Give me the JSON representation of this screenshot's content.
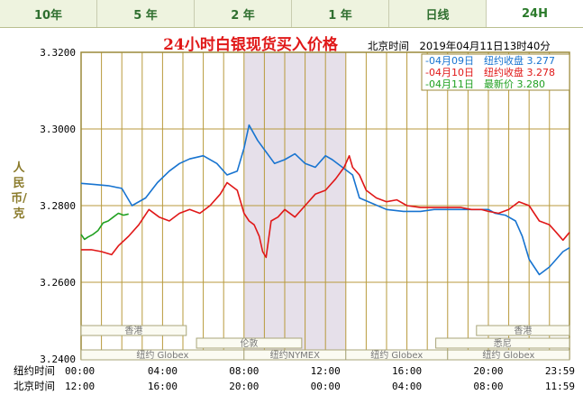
{
  "tabs": [
    {
      "label": "10年",
      "active": false
    },
    {
      "label": "5 年",
      "active": false
    },
    {
      "label": "2 年",
      "active": false
    },
    {
      "label": "1 年",
      "active": false
    },
    {
      "label": "日线",
      "active": false
    },
    {
      "label": "24H",
      "active": true
    }
  ],
  "colors": {
    "grid": "#b89a3c",
    "panel_border": "#9c8a3a",
    "session_band": "#e6e0ea",
    "series1": "#1874d0",
    "series2": "#e01818",
    "series3": "#20a020",
    "title": "#e01818"
  },
  "chart_data": {
    "type": "line",
    "title": "24小时白银现货买入价格",
    "time_label": "北京时间　2019年04月11日13时40分",
    "ylabel": "人民币/克",
    "ylim": [
      3.24,
      3.32
    ],
    "ytick_labels": [
      "3.3200",
      "3.3000",
      "3.2800",
      "3.2600",
      "3.2400"
    ],
    "xlim": [
      0,
      1439
    ],
    "x_axis_rows": [
      {
        "label": "纽约时间",
        "ticks": [
          "00:00",
          "04:00",
          "08:00",
          "12:00",
          "16:00",
          "20:00",
          "23:59"
        ]
      },
      {
        "label": "北京时间",
        "ticks": [
          "12:00",
          "16:00",
          "20:00",
          "00:00",
          "04:00",
          "08:00",
          "11:59"
        ]
      }
    ],
    "x_ticks_minutes": [
      0,
      240,
      480,
      720,
      960,
      1200,
      1439
    ],
    "highlight_range_minutes": [
      480,
      780
    ],
    "legend": [
      {
        "date": "-04月09日",
        "text": "纽约收盘",
        "value": "3.277",
        "series": 0
      },
      {
        "date": "-04月10日",
        "text": "纽约收盘",
        "value": "3.278",
        "series": 1
      },
      {
        "date": "-04月11日",
        "text": "最新价",
        "value": "3.280",
        "series": 2
      }
    ],
    "sessions": [
      {
        "label": "香港",
        "row": 0,
        "start": 0,
        "end": 310
      },
      {
        "label": "香港",
        "row": 0,
        "start": 1165,
        "end": 1439
      },
      {
        "label": "伦敦",
        "row": 1,
        "start": 340,
        "end": 650
      },
      {
        "label": "悉尼",
        "row": 1,
        "start": 1045,
        "end": 1439
      },
      {
        "label": "纽约 Globex",
        "row": 2,
        "start": 0,
        "end": 480
      },
      {
        "label": "纽约NYMEX",
        "row": 2,
        "start": 480,
        "end": 780
      },
      {
        "label": "纽约 Globex",
        "row": 2,
        "start": 780,
        "end": 1080
      },
      {
        "label": "纽约 Globex",
        "row": 2,
        "start": 1080,
        "end": 1439
      }
    ],
    "series": [
      {
        "name": "04月09日",
        "color": "#1874d0",
        "x": [
          0,
          40,
          80,
          120,
          150,
          190,
          225,
          260,
          290,
          320,
          360,
          400,
          430,
          460,
          480,
          495,
          520,
          545,
          570,
          600,
          630,
          660,
          690,
          720,
          740,
          770,
          800,
          820,
          860,
          900,
          950,
          1000,
          1040,
          1080,
          1120,
          1160,
          1200,
          1220,
          1250,
          1280,
          1300,
          1320,
          1350,
          1380,
          1400,
          1420,
          1439
        ],
        "y": [
          3.2858,
          3.2855,
          3.2852,
          3.2845,
          3.28,
          3.282,
          3.286,
          3.289,
          3.291,
          3.2922,
          3.293,
          3.291,
          3.288,
          3.289,
          3.295,
          3.301,
          3.297,
          3.294,
          3.291,
          3.292,
          3.2935,
          3.291,
          3.29,
          3.293,
          3.292,
          3.29,
          3.288,
          3.282,
          3.2805,
          3.279,
          3.2785,
          3.2785,
          3.279,
          3.279,
          3.279,
          3.279,
          3.279,
          3.278,
          3.2775,
          3.276,
          3.272,
          3.266,
          3.262,
          3.264,
          3.266,
          3.268,
          3.269
        ]
      },
      {
        "name": "04月10日",
        "color": "#e01818",
        "x": [
          0,
          30,
          60,
          90,
          110,
          140,
          170,
          200,
          230,
          260,
          290,
          320,
          350,
          380,
          410,
          430,
          460,
          480,
          495,
          510,
          525,
          535,
          545,
          560,
          580,
          600,
          630,
          660,
          690,
          720,
          750,
          775,
          790,
          800,
          820,
          840,
          870,
          900,
          930,
          960,
          1000,
          1050,
          1080,
          1120,
          1150,
          1180,
          1200,
          1230,
          1260,
          1290,
          1320,
          1350,
          1380,
          1400,
          1420,
          1439
        ],
        "y": [
          3.2685,
          3.2685,
          3.268,
          3.2672,
          3.2695,
          3.272,
          3.275,
          3.279,
          3.277,
          3.276,
          3.278,
          3.279,
          3.278,
          3.28,
          3.283,
          3.286,
          3.284,
          3.278,
          3.276,
          3.275,
          3.272,
          3.268,
          3.2665,
          3.276,
          3.277,
          3.279,
          3.277,
          3.28,
          3.283,
          3.284,
          3.287,
          3.29,
          3.293,
          3.29,
          3.288,
          3.284,
          3.282,
          3.281,
          3.2815,
          3.28,
          3.2795,
          3.2795,
          3.2795,
          3.2795,
          3.279,
          3.279,
          3.2785,
          3.278,
          3.279,
          3.281,
          3.28,
          3.276,
          3.275,
          3.273,
          3.271,
          3.273
        ]
      },
      {
        "name": "04月11日",
        "color": "#20a020",
        "x": [
          0,
          10,
          20,
          35,
          50,
          65,
          80,
          95,
          110,
          125,
          140
        ],
        "y": [
          3.2725,
          3.2712,
          3.2718,
          3.2725,
          3.2735,
          3.2755,
          3.276,
          3.277,
          3.278,
          3.2775,
          3.2778
        ]
      }
    ]
  }
}
